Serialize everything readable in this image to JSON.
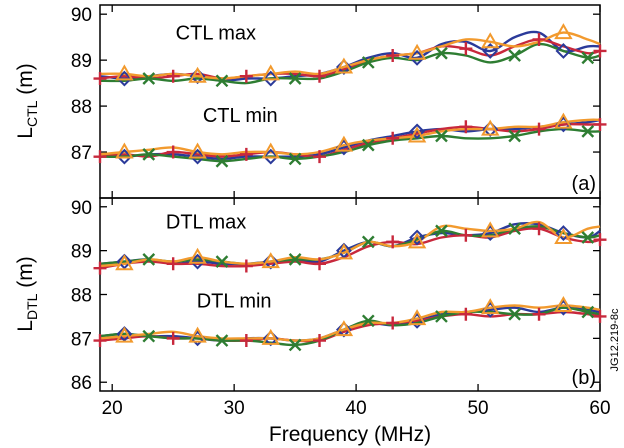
{
  "chart_data": [
    {
      "type": "line",
      "panel_label": "(a)",
      "ylabel_main": "L",
      "ylabel_sub": "CTL",
      "ylabel_unit": " (m)",
      "ylim": [
        86,
        90.2
      ],
      "yticks": [
        87,
        88,
        89,
        90
      ],
      "xlim": [
        19,
        60
      ],
      "xticks": [
        20,
        30,
        40,
        50,
        60
      ],
      "annotations": [
        {
          "text": "CTL max",
          "x": 28.5,
          "y": 89.45
        },
        {
          "text": "CTL min",
          "x": 30.5,
          "y": 87.65
        }
      ],
      "series": [
        {
          "color": "#2b3a9a",
          "marker": "diamond",
          "x": [
            19,
            21,
            23,
            25,
            27,
            29,
            31,
            33,
            35,
            37,
            39,
            41,
            43,
            45,
            47,
            49,
            51,
            53,
            55,
            57,
            59,
            60
          ],
          "y": [
            88.65,
            88.6,
            88.65,
            88.7,
            88.65,
            88.55,
            88.6,
            88.6,
            88.65,
            88.7,
            88.85,
            89.05,
            89.15,
            89.05,
            89.35,
            89.4,
            89.2,
            89.5,
            89.6,
            89.2,
            89.3,
            89.3
          ]
        },
        {
          "color": "#c8283c",
          "marker": "plus",
          "x": [
            19,
            21,
            23,
            25,
            27,
            29,
            31,
            33,
            35,
            37,
            39,
            41,
            43,
            45,
            47,
            49,
            51,
            53,
            55,
            57,
            59,
            60
          ],
          "y": [
            88.6,
            88.65,
            88.6,
            88.65,
            88.7,
            88.6,
            88.65,
            88.7,
            88.7,
            88.65,
            88.8,
            89.0,
            89.1,
            89.15,
            89.3,
            89.25,
            89.1,
            89.3,
            89.45,
            89.3,
            89.15,
            89.2
          ]
        },
        {
          "color": "#2e7d32",
          "marker": "cross",
          "x": [
            19,
            21,
            23,
            25,
            27,
            29,
            31,
            33,
            35,
            37,
            39,
            41,
            43,
            45,
            47,
            49,
            51,
            53,
            55,
            57,
            59,
            60
          ],
          "y": [
            88.55,
            88.55,
            88.6,
            88.55,
            88.6,
            88.55,
            88.5,
            88.6,
            88.6,
            88.6,
            88.75,
            88.95,
            89.05,
            89.0,
            89.15,
            89.1,
            88.95,
            89.1,
            89.35,
            89.2,
            89.05,
            89.1
          ]
        },
        {
          "color": "#f29a2e",
          "marker": "triangle",
          "x": [
            19,
            21,
            23,
            25,
            27,
            29,
            31,
            33,
            35,
            37,
            39,
            41,
            43,
            45,
            47,
            49,
            51,
            53,
            55,
            57,
            59,
            60
          ],
          "y": [
            88.7,
            88.7,
            88.65,
            88.7,
            88.65,
            88.6,
            88.65,
            88.7,
            88.75,
            88.7,
            88.85,
            89.0,
            89.1,
            89.15,
            89.3,
            89.45,
            89.4,
            89.3,
            89.4,
            89.6,
            89.45,
            89.35
          ]
        },
        {
          "color": "#2b3a9a",
          "marker": "diamond",
          "x": [
            19,
            21,
            23,
            25,
            27,
            29,
            31,
            33,
            35,
            37,
            39,
            41,
            43,
            45,
            47,
            49,
            51,
            53,
            55,
            57,
            59,
            60
          ],
          "y": [
            86.95,
            86.9,
            86.95,
            86.95,
            86.9,
            86.85,
            86.9,
            86.9,
            86.9,
            86.95,
            87.1,
            87.25,
            87.35,
            87.45,
            87.5,
            87.45,
            87.5,
            87.5,
            87.55,
            87.6,
            87.65,
            87.7
          ]
        },
        {
          "color": "#c8283c",
          "marker": "plus",
          "x": [
            19,
            21,
            23,
            25,
            27,
            29,
            31,
            33,
            35,
            37,
            39,
            41,
            43,
            45,
            47,
            49,
            51,
            53,
            55,
            57,
            59,
            60
          ],
          "y": [
            86.9,
            86.95,
            86.9,
            87.0,
            86.95,
            86.9,
            86.95,
            87.0,
            86.95,
            86.9,
            87.05,
            87.2,
            87.3,
            87.4,
            87.5,
            87.55,
            87.5,
            87.45,
            87.5,
            87.6,
            87.6,
            87.6
          ]
        },
        {
          "color": "#2e7d32",
          "marker": "cross",
          "x": [
            19,
            21,
            23,
            25,
            27,
            29,
            31,
            33,
            35,
            37,
            39,
            41,
            43,
            45,
            47,
            49,
            51,
            53,
            55,
            57,
            59,
            60
          ],
          "y": [
            86.9,
            86.9,
            86.95,
            86.9,
            86.85,
            86.8,
            86.85,
            86.9,
            86.85,
            86.9,
            87.0,
            87.15,
            87.25,
            87.3,
            87.35,
            87.3,
            87.3,
            87.35,
            87.45,
            87.5,
            87.45,
            87.45
          ]
        },
        {
          "color": "#f29a2e",
          "marker": "triangle",
          "x": [
            19,
            21,
            23,
            25,
            27,
            29,
            31,
            33,
            35,
            37,
            39,
            41,
            43,
            45,
            47,
            49,
            51,
            53,
            55,
            57,
            59,
            60
          ],
          "y": [
            86.95,
            87.0,
            87.05,
            87.1,
            87.0,
            86.95,
            87.0,
            87.0,
            86.95,
            87.0,
            87.15,
            87.25,
            87.3,
            87.35,
            87.45,
            87.5,
            87.5,
            87.55,
            87.55,
            87.65,
            87.7,
            87.7
          ]
        }
      ]
    },
    {
      "type": "line",
      "panel_label": "(b)",
      "ylabel_main": "L",
      "ylabel_sub": "DTL",
      "ylabel_unit": " (m)",
      "ylim": [
        85.8,
        90.2
      ],
      "yticks": [
        86,
        87,
        88,
        89,
        90
      ],
      "xlim": [
        19,
        60
      ],
      "xticks": [
        20,
        30,
        40,
        50,
        60
      ],
      "xlabel": "Frequency (MHz)",
      "annotations": [
        {
          "text": "DTL max",
          "x": 27.7,
          "y": 89.5
        },
        {
          "text": "DTL min",
          "x": 30.0,
          "y": 87.7
        }
      ],
      "series": [
        {
          "color": "#2b3a9a",
          "marker": "diamond",
          "x": [
            19,
            21,
            23,
            25,
            27,
            29,
            31,
            33,
            35,
            37,
            39,
            41,
            43,
            45,
            47,
            49,
            51,
            53,
            55,
            57,
            59,
            60
          ],
          "y": [
            88.7,
            88.75,
            88.8,
            88.7,
            88.75,
            88.7,
            88.7,
            88.75,
            88.8,
            88.75,
            89.0,
            89.2,
            89.1,
            89.3,
            89.4,
            89.35,
            89.4,
            89.6,
            89.6,
            89.4,
            89.3,
            89.45
          ]
        },
        {
          "color": "#c8283c",
          "marker": "plus",
          "x": [
            19,
            21,
            23,
            25,
            27,
            29,
            31,
            33,
            35,
            37,
            39,
            41,
            43,
            45,
            47,
            49,
            51,
            53,
            55,
            57,
            59,
            60
          ],
          "y": [
            88.6,
            88.7,
            88.75,
            88.7,
            88.7,
            88.65,
            88.65,
            88.7,
            88.75,
            88.7,
            88.85,
            89.1,
            89.2,
            89.15,
            89.3,
            89.35,
            89.3,
            89.45,
            89.5,
            89.3,
            89.2,
            89.25
          ]
        },
        {
          "color": "#2e7d32",
          "marker": "cross",
          "x": [
            19,
            21,
            23,
            25,
            27,
            29,
            31,
            33,
            35,
            37,
            39,
            41,
            43,
            45,
            47,
            49,
            51,
            53,
            55,
            57,
            59,
            60
          ],
          "y": [
            88.7,
            88.75,
            88.8,
            88.75,
            88.8,
            88.75,
            88.7,
            88.75,
            88.8,
            88.8,
            88.95,
            89.2,
            89.1,
            89.25,
            89.45,
            89.35,
            89.35,
            89.5,
            89.55,
            89.4,
            89.3,
            89.35
          ]
        },
        {
          "color": "#f29a2e",
          "marker": "triangle",
          "x": [
            19,
            21,
            23,
            25,
            27,
            29,
            31,
            33,
            35,
            37,
            39,
            41,
            43,
            45,
            47,
            49,
            51,
            53,
            55,
            57,
            59,
            60
          ],
          "y": [
            88.65,
            88.7,
            88.8,
            88.75,
            88.85,
            88.75,
            88.7,
            88.75,
            88.85,
            88.8,
            88.95,
            89.2,
            89.1,
            89.2,
            89.55,
            89.5,
            89.45,
            89.5,
            89.65,
            89.3,
            89.5,
            89.55
          ]
        },
        {
          "color": "#2b3a9a",
          "marker": "diamond",
          "x": [
            19,
            21,
            23,
            25,
            27,
            29,
            31,
            33,
            35,
            37,
            39,
            41,
            43,
            45,
            47,
            49,
            51,
            53,
            55,
            57,
            59,
            60
          ],
          "y": [
            87.05,
            87.1,
            87.05,
            87.05,
            87.0,
            86.95,
            87.0,
            87.0,
            86.95,
            87.0,
            87.2,
            87.35,
            87.3,
            87.4,
            87.55,
            87.6,
            87.65,
            87.7,
            87.6,
            87.7,
            87.65,
            87.6
          ]
        },
        {
          "color": "#c8283c",
          "marker": "plus",
          "x": [
            19,
            21,
            23,
            25,
            27,
            29,
            31,
            33,
            35,
            37,
            39,
            41,
            43,
            45,
            47,
            49,
            51,
            53,
            55,
            57,
            59,
            60
          ],
          "y": [
            86.95,
            87.0,
            87.05,
            87.0,
            87.0,
            86.95,
            86.95,
            87.0,
            86.95,
            86.95,
            87.15,
            87.3,
            87.35,
            87.4,
            87.5,
            87.55,
            87.5,
            87.55,
            87.55,
            87.6,
            87.55,
            87.5
          ]
        },
        {
          "color": "#2e7d32",
          "marker": "cross",
          "x": [
            19,
            21,
            23,
            25,
            27,
            29,
            31,
            33,
            35,
            37,
            39,
            41,
            43,
            45,
            47,
            49,
            51,
            53,
            55,
            57,
            59,
            60
          ],
          "y": [
            87.05,
            87.1,
            87.05,
            87.0,
            87.0,
            86.95,
            86.95,
            86.9,
            86.85,
            86.95,
            87.2,
            87.4,
            87.3,
            87.35,
            87.5,
            87.6,
            87.6,
            87.55,
            87.55,
            87.7,
            87.6,
            87.55
          ]
        },
        {
          "color": "#f29a2e",
          "marker": "triangle",
          "x": [
            19,
            21,
            23,
            25,
            27,
            29,
            31,
            33,
            35,
            37,
            39,
            41,
            43,
            45,
            47,
            49,
            51,
            53,
            55,
            57,
            59,
            60
          ],
          "y": [
            87.0,
            87.05,
            87.1,
            87.15,
            87.05,
            87.0,
            87.0,
            87.0,
            86.95,
            87.0,
            87.2,
            87.35,
            87.35,
            87.45,
            87.6,
            87.6,
            87.7,
            87.75,
            87.7,
            87.75,
            87.7,
            87.65
          ]
        }
      ]
    }
  ],
  "figure_code": "JG12.219-8c"
}
